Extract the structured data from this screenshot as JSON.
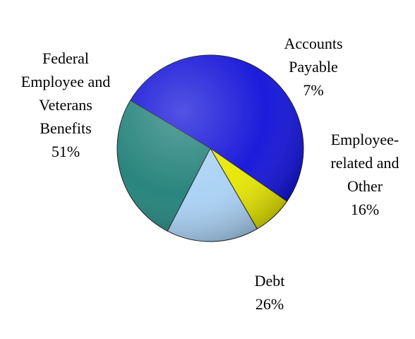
{
  "chart_data": {
    "type": "pie",
    "slices": [
      {
        "label": "Federal Employee and Veterans Benefits",
        "label_lines": "Federal\nEmployee and\nVeterans\nBenefits",
        "value": 51,
        "value_label": "51%",
        "color": "#1010d8"
      },
      {
        "label": "Accounts Payable",
        "label_lines": "Accounts\nPayable",
        "value": 7,
        "value_label": "7%",
        "color": "#e6e600"
      },
      {
        "label": "Employee-related and Other",
        "label_lines": "Employee-\nrelated and\nOther",
        "value": 16,
        "value_label": "16%",
        "color": "#a8d0f4"
      },
      {
        "label": "Debt",
        "label_lines": "Debt",
        "value": 26,
        "value_label": "26%",
        "color": "#1f7f78"
      }
    ],
    "legend": "none"
  }
}
